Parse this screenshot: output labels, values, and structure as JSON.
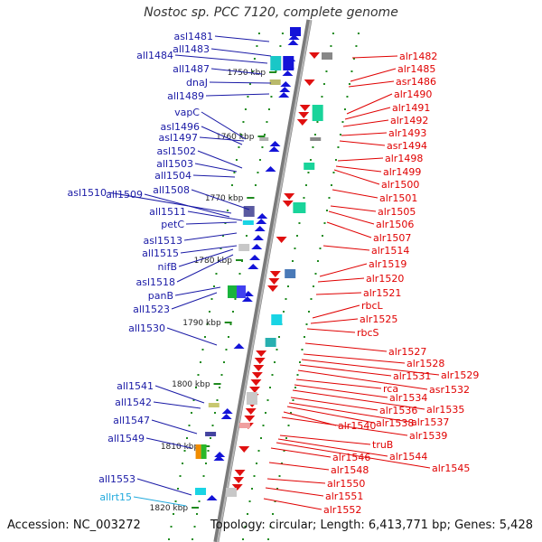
{
  "title": "Nostoc sp. PCC 7120, complete genome",
  "footer": {
    "accession": "Accession: NC_003272",
    "topology": "Topology: circular; Length: 6,413,771 bp; Genes: 5,428"
  },
  "colors": {
    "reverse_label": "#1a1aa6",
    "forward_label": "#e00000",
    "rna_label": "#22aadd",
    "ruler": "#9a9a9a",
    "tick": "#1f8a1f"
  },
  "kbp_marks": [
    {
      "label": "1750 kbp"
    },
    {
      "label": "1760 kbp"
    },
    {
      "label": "1770 kbp"
    },
    {
      "label": "1780 kbp"
    },
    {
      "label": "1790 kbp"
    },
    {
      "label": "1800 kbp"
    },
    {
      "label": "1810 kbp"
    },
    {
      "label": "1820 kbp"
    }
  ],
  "left_labels": [
    {
      "text": "asl1481",
      "kind": "reverse"
    },
    {
      "text": "all1483",
      "kind": "reverse"
    },
    {
      "text": "all1484",
      "kind": "reverse"
    },
    {
      "text": "all1487",
      "kind": "reverse"
    },
    {
      "text": "dnaJ",
      "kind": "reverse"
    },
    {
      "text": "all1489",
      "kind": "reverse"
    },
    {
      "text": "vapC",
      "kind": "reverse"
    },
    {
      "text": "asl1496",
      "kind": "reverse"
    },
    {
      "text": "asl1497",
      "kind": "reverse"
    },
    {
      "text": "asl1502",
      "kind": "reverse"
    },
    {
      "text": "all1503",
      "kind": "reverse"
    },
    {
      "text": "all1504",
      "kind": "reverse"
    },
    {
      "text": "all1508",
      "kind": "reverse"
    },
    {
      "text": "asl1510",
      "kind": "reverse"
    },
    {
      "text": "all1509",
      "kind": "reverse"
    },
    {
      "text": "all1511",
      "kind": "reverse"
    },
    {
      "text": "petC",
      "kind": "reverse"
    },
    {
      "text": "asl1513",
      "kind": "reverse"
    },
    {
      "text": "all1515",
      "kind": "reverse"
    },
    {
      "text": "nifB",
      "kind": "reverse"
    },
    {
      "text": "asl1518",
      "kind": "reverse"
    },
    {
      "text": "panB",
      "kind": "reverse"
    },
    {
      "text": "all1523",
      "kind": "reverse"
    },
    {
      "text": "all1530",
      "kind": "reverse"
    },
    {
      "text": "all1541",
      "kind": "reverse"
    },
    {
      "text": "all1542",
      "kind": "reverse"
    },
    {
      "text": "all1547",
      "kind": "reverse"
    },
    {
      "text": "all1549",
      "kind": "reverse"
    },
    {
      "text": "all1553",
      "kind": "reverse"
    },
    {
      "text": "allrt15",
      "kind": "rna"
    }
  ],
  "right_labels": [
    {
      "text": "alr1482"
    },
    {
      "text": "alr1485"
    },
    {
      "text": "asr1486"
    },
    {
      "text": "alr1490"
    },
    {
      "text": "alr1491"
    },
    {
      "text": "alr1492"
    },
    {
      "text": "alr1493"
    },
    {
      "text": "asr1494"
    },
    {
      "text": "alr1498"
    },
    {
      "text": "alr1499"
    },
    {
      "text": "alr1500"
    },
    {
      "text": "alr1501"
    },
    {
      "text": "alr1505"
    },
    {
      "text": "alr1506"
    },
    {
      "text": "alr1507"
    },
    {
      "text": "alr1514"
    },
    {
      "text": "alr1519"
    },
    {
      "text": "alr1520"
    },
    {
      "text": "alr1521"
    },
    {
      "text": "rbcL"
    },
    {
      "text": "alr1525"
    },
    {
      "text": "rbcS"
    },
    {
      "text": "alr1527"
    },
    {
      "text": "alr1528"
    },
    {
      "text": "alr1529"
    },
    {
      "text": "alr1531"
    },
    {
      "text": "asr1532"
    },
    {
      "text": "rca"
    },
    {
      "text": "alr1534"
    },
    {
      "text": "alr1535"
    },
    {
      "text": "alr1536"
    },
    {
      "text": "alr1537"
    },
    {
      "text": "alr1538"
    },
    {
      "text": "alr1540"
    },
    {
      "text": "alr1539"
    },
    {
      "text": "truB"
    },
    {
      "text": "alr1544"
    },
    {
      "text": "alr1545"
    },
    {
      "text": "alr1546"
    },
    {
      "text": "alr1548"
    },
    {
      "text": "alr1550"
    },
    {
      "text": "alr1551"
    },
    {
      "text": "alr1552"
    }
  ]
}
